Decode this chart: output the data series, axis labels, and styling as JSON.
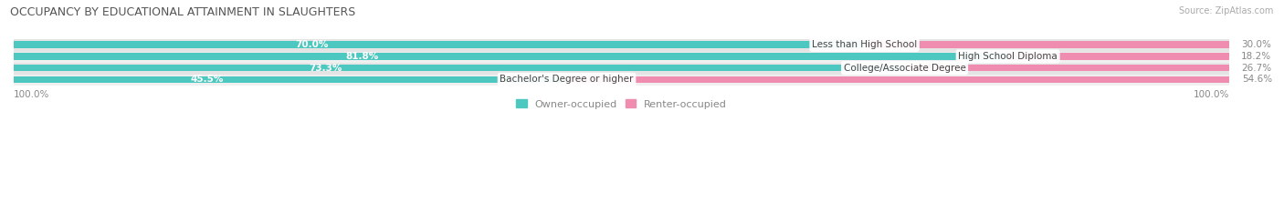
{
  "title": "OCCUPANCY BY EDUCATIONAL ATTAINMENT IN SLAUGHTERS",
  "source": "Source: ZipAtlas.com",
  "categories": [
    "Less than High School",
    "High School Diploma",
    "College/Associate Degree",
    "Bachelor's Degree or higher"
  ],
  "owner_pct": [
    70.0,
    81.8,
    73.3,
    45.5
  ],
  "renter_pct": [
    30.0,
    18.2,
    26.7,
    54.6
  ],
  "owner_color": "#4dc8c0",
  "renter_color": "#f08cb0",
  "row_bg_colors": [
    "#f0f0f0",
    "#e4e4e4"
  ],
  "title_fontsize": 9,
  "label_fontsize": 7.5,
  "pct_fontsize": 7.5,
  "legend_fontsize": 8,
  "source_fontsize": 7,
  "bar_height": 0.6,
  "figsize": [
    14.06,
    2.33
  ],
  "dpi": 100,
  "xlim": [
    0,
    100
  ]
}
